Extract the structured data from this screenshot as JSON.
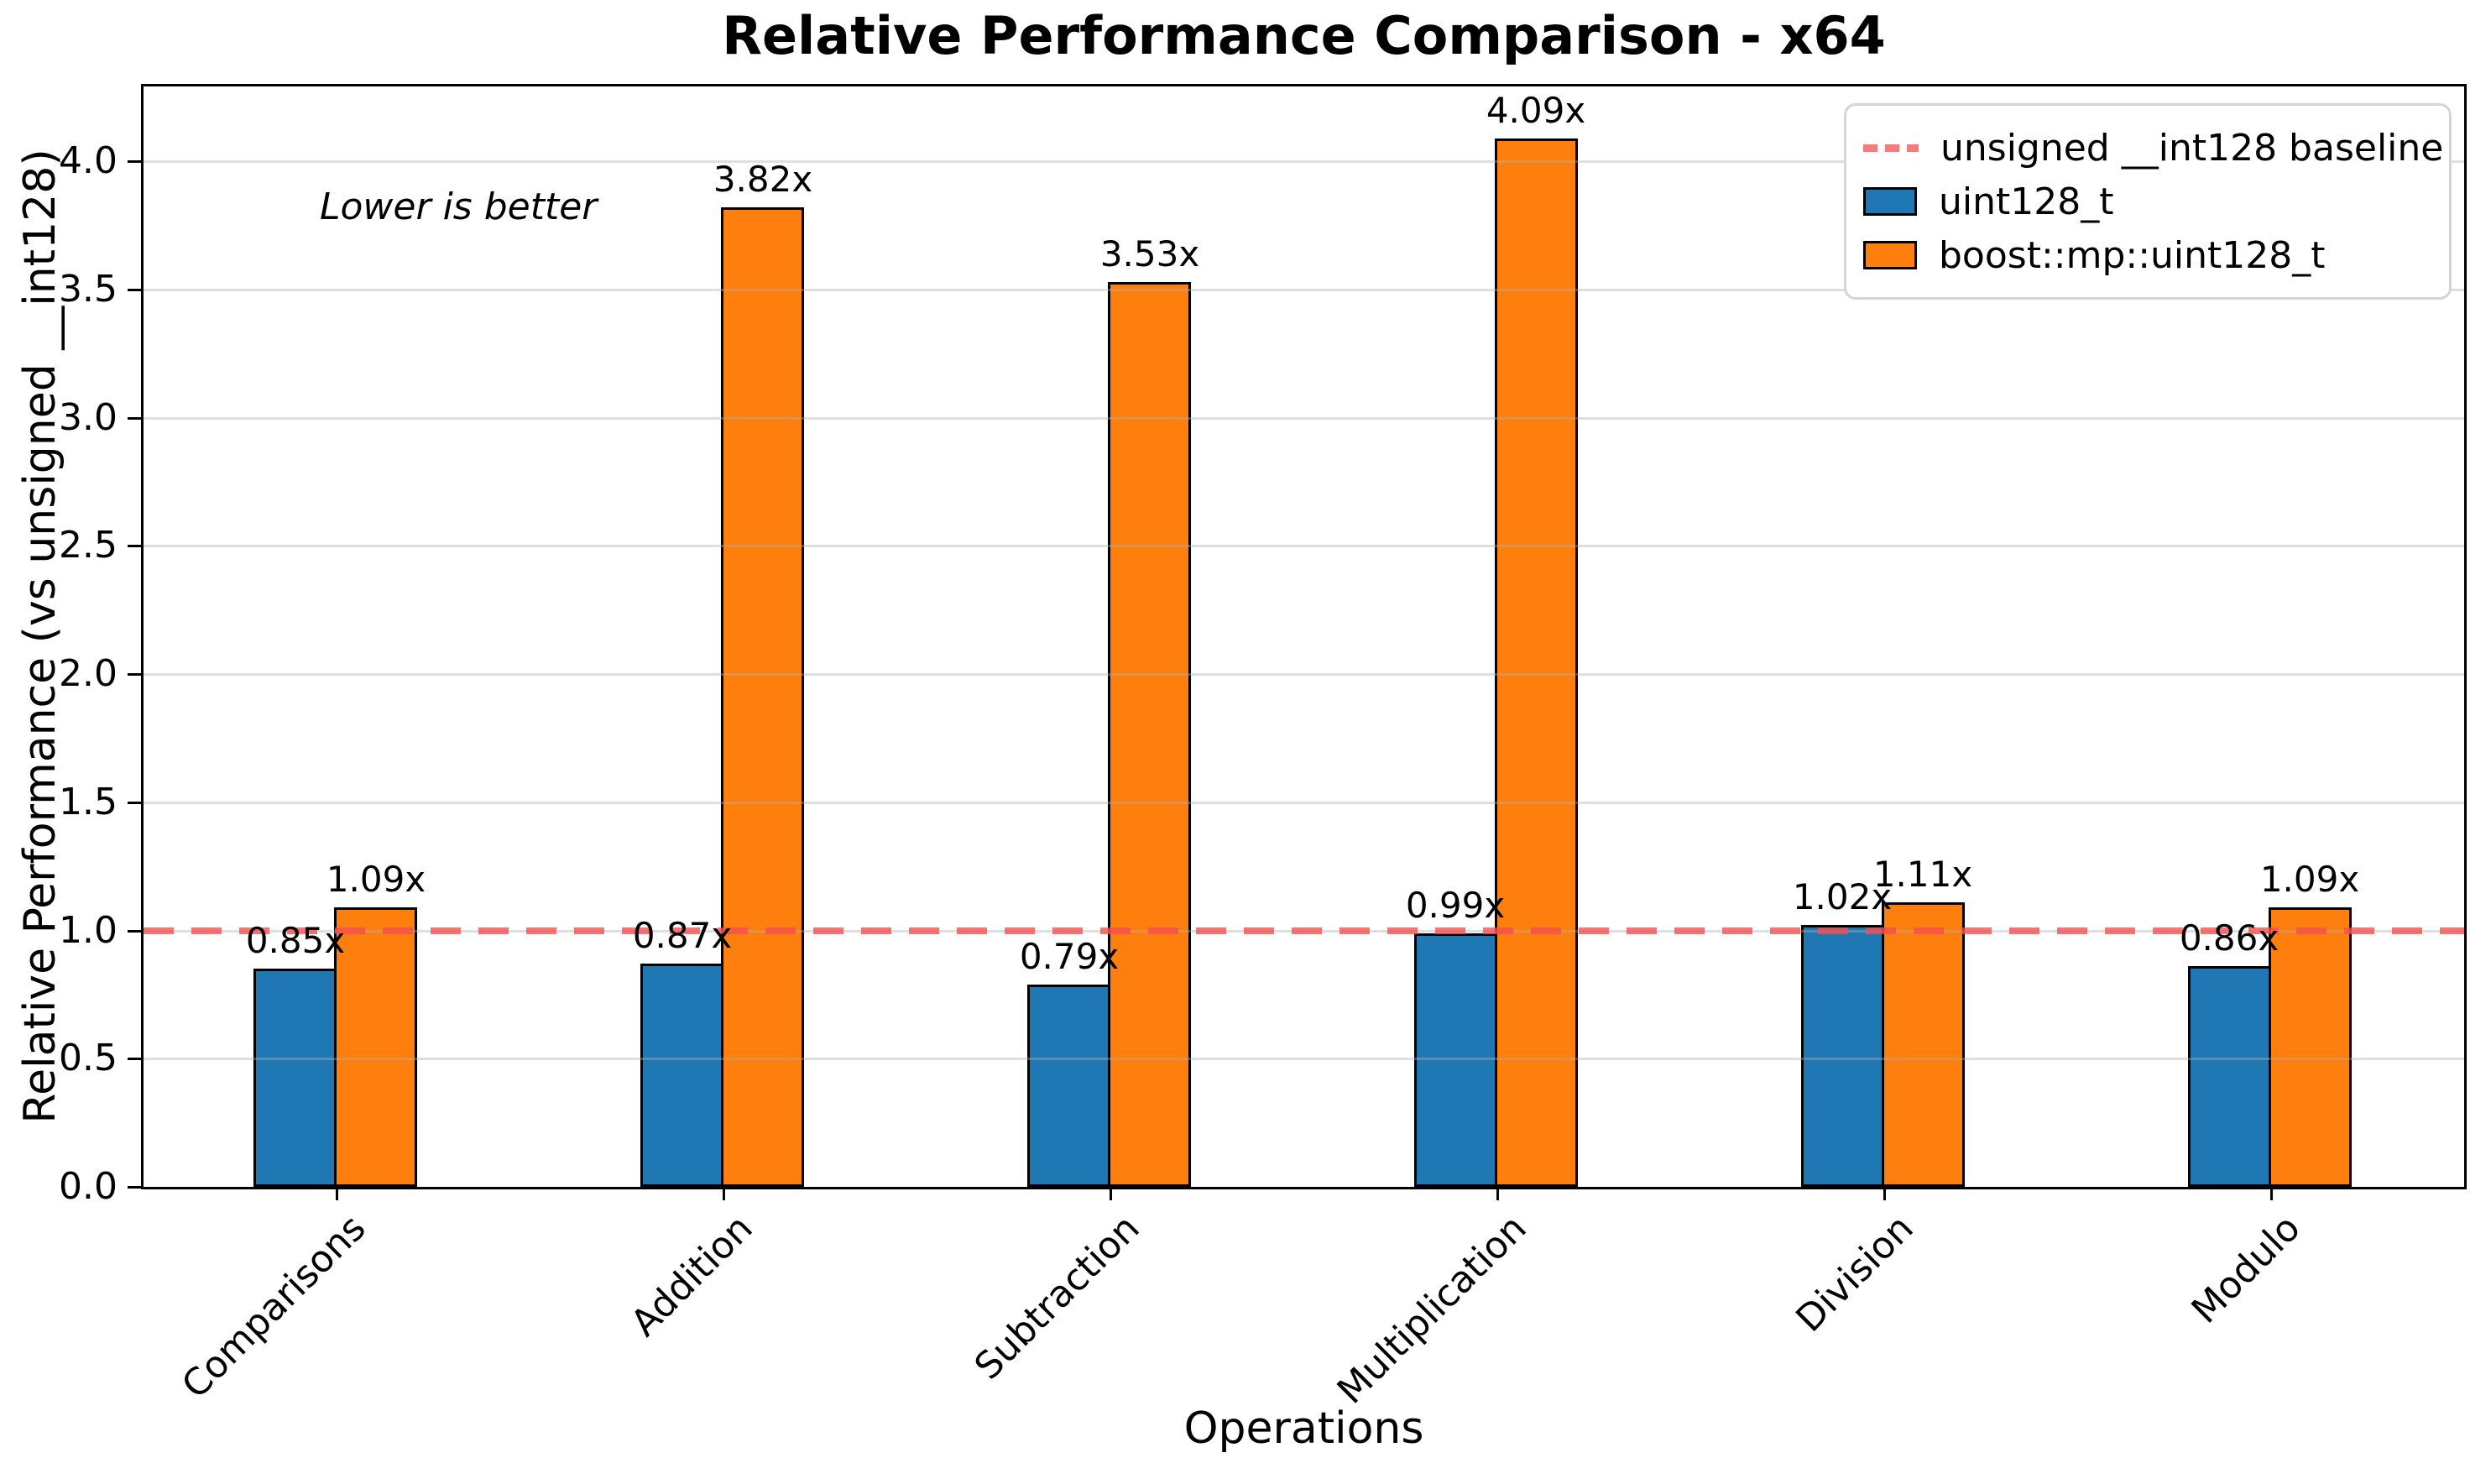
{
  "title": "Relative Performance Comparison - x64",
  "annotation": "Lower is better",
  "axes": {
    "x_label": "Operations",
    "y_label": "Relative Performance (vs unsigned __int128)"
  },
  "legend": [
    {
      "type": "dash",
      "color": "#f87a7a",
      "label": "unsigned __int128 baseline"
    },
    {
      "type": "box",
      "color": "#1f77b4",
      "label": "uint128_t"
    },
    {
      "type": "box",
      "color": "#ff7f0e",
      "label": "boost::mp::uint128_t"
    }
  ],
  "chart_data": {
    "type": "bar",
    "title": "Relative Performance Comparison - x64",
    "xlabel": "Operations",
    "ylabel": "Relative Performance (vs unsigned __int128)",
    "categories": [
      "Comparisons",
      "Addition",
      "Subtraction",
      "Multiplication",
      "Division",
      "Modulo"
    ],
    "series": [
      {
        "name": "uint128_t",
        "color": "#1f77b4",
        "values": [
          0.85,
          0.87,
          0.79,
          0.99,
          1.02,
          0.86
        ],
        "labels": [
          "0.85x",
          "0.87x",
          "0.79x",
          "0.99x",
          "1.02x",
          "0.86x"
        ]
      },
      {
        "name": "boost::mp::uint128_t",
        "color": "#ff7f0e",
        "values": [
          1.09,
          3.82,
          3.53,
          4.09,
          1.11,
          1.09
        ],
        "labels": [
          "1.09x",
          "3.82x",
          "3.53x",
          "4.09x",
          "1.11x",
          "1.09x"
        ]
      }
    ],
    "baseline": {
      "value": 1.0,
      "label": "unsigned __int128 baseline",
      "color": "#f84c4c"
    },
    "yticks": [
      0.0,
      0.5,
      1.0,
      1.5,
      2.0,
      2.5,
      3.0,
      3.5,
      4.0
    ],
    "ytick_labels": [
      "0.0",
      "0.5",
      "1.0",
      "1.5",
      "2.0",
      "2.5",
      "3.0",
      "3.5",
      "4.0"
    ],
    "ylim": [
      0,
      4.292
    ],
    "grid": "horizontal",
    "grid_above_bars": true,
    "legend_position": "top-right",
    "annotation": "Lower is better"
  }
}
